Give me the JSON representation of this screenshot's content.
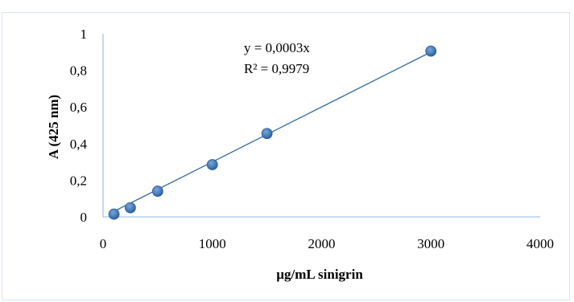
{
  "chart_data": {
    "type": "scatter",
    "xlabel": "µg/mL sinigrin",
    "ylabel": "A (425 nm)",
    "xlim": [
      0,
      4000
    ],
    "ylim": [
      0,
      1
    ],
    "x_ticks": [
      "0",
      "1000",
      "2000",
      "3000",
      "4000"
    ],
    "y_ticks": [
      "0",
      "0,2",
      "0,4",
      "0,6",
      "0,8",
      "1"
    ],
    "series": [
      {
        "x": [
          100,
          250,
          500,
          1000,
          1500,
          3000
        ],
        "y": [
          0.015,
          0.05,
          0.14,
          0.285,
          0.455,
          0.905
        ]
      }
    ],
    "trendline": {
      "slope": 0.0003,
      "intercept": 0,
      "x_range": [
        100,
        3000
      ]
    },
    "annotations": {
      "equation": "y = 0,0003x",
      "r_squared": "R² = 0,9979"
    },
    "grid": false,
    "legend": "none",
    "colors": {
      "marker": "#4a7ebb",
      "marker_edge": "#2f5f9c",
      "trendline": "#3d6fa8",
      "axis": "#8eb4e3"
    }
  }
}
